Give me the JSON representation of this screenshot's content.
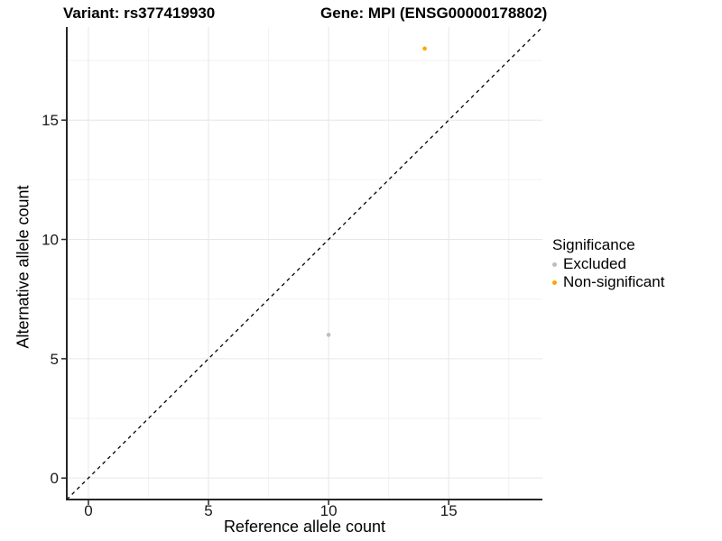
{
  "title": {
    "left": "Variant: rs377419930",
    "right": "Gene: MPI (ENSG00000178802)"
  },
  "axes": {
    "x_label": "Reference allele count",
    "y_label": "Alternative allele count"
  },
  "legend": {
    "title": "Significance",
    "items": [
      {
        "label": "Excluded",
        "color": "#BEBEBE"
      },
      {
        "label": "Non-significant",
        "color": "#FFA500"
      }
    ]
  },
  "colors": {
    "excluded": "#BEBEBE",
    "non_significant": "#FFA500",
    "grid_major": "#E6E6E6",
    "grid_minor": "#F2F2F2",
    "axis": "#262626",
    "tick_text": "#1A1A1A",
    "reference_line": "#000000",
    "background": "#FFFFFF"
  },
  "chart_data": {
    "type": "scatter",
    "title": "Variant: rs377419930 — Gene: MPI (ENSG00000178802)",
    "xlabel": "Reference allele count",
    "ylabel": "Alternative allele count",
    "xlim": [
      -0.9,
      18.9
    ],
    "ylim": [
      -0.9,
      18.9
    ],
    "x_ticks": [
      0,
      5,
      10,
      15
    ],
    "y_ticks": [
      0,
      5,
      10,
      15
    ],
    "minor_ticks": [
      2.5,
      7.5,
      12.5,
      17.5
    ],
    "grid": true,
    "legend_position": "right",
    "point_radius": 2.3,
    "series": [
      {
        "name": "Excluded",
        "color": "#BEBEBE",
        "points": [
          {
            "x": 10,
            "y": 6
          }
        ]
      },
      {
        "name": "Non-significant",
        "color": "#FFA500",
        "points": [
          {
            "x": 14,
            "y": 18
          }
        ]
      }
    ],
    "reference_line": {
      "type": "identity",
      "style": "dashed",
      "color": "#000000",
      "dash": "4 4"
    }
  }
}
